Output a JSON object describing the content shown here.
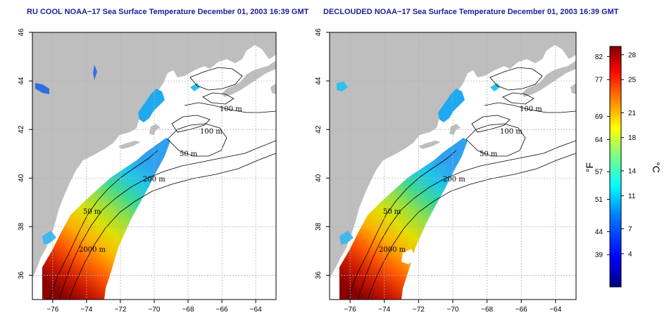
{
  "panels": [
    {
      "title": "RU COOL NOAA−17 Sea Surface Temperature December 01, 2003 16:39 GMT"
    },
    {
      "title": "DECLOUDED NOAA−17 Sea Surface Temperature December 01, 2003 16:39 GMT"
    }
  ],
  "axes": {
    "lon_ticks": [
      "−76",
      "−74",
      "−72",
      "−70",
      "−68",
      "−66",
      "−64"
    ],
    "lon_values": [
      -76,
      -74,
      -72,
      -70,
      -68,
      -66,
      -64
    ],
    "lat_ticks": [
      "36",
      "38",
      "40",
      "42",
      "44",
      "46"
    ],
    "lat_values": [
      36,
      38,
      40,
      42,
      44,
      46
    ],
    "lon_range": [
      -77.2,
      -62.8
    ],
    "lat_range": [
      35.0,
      46.0
    ]
  },
  "contour_labels": [
    "100 m",
    "100 m",
    "50 m",
    "200 m",
    "50 m",
    "2000 m"
  ],
  "colorbar": {
    "fahrenheit_ticks": [
      "82",
      "77",
      "69",
      "64",
      "57",
      "51",
      "44",
      "39"
    ],
    "fahrenheit_values": [
      82,
      77,
      69,
      64,
      57,
      51,
      44,
      39
    ],
    "celsius_ticks": [
      "28",
      "25",
      "21",
      "18",
      "14",
      "11",
      "7",
      "4"
    ],
    "celsius_values": [
      28,
      25,
      21,
      18,
      14,
      11,
      7,
      4
    ],
    "range_c": [
      0,
      29
    ],
    "left_unit": "°F",
    "right_unit": "°C",
    "colors": [
      "#00007f",
      "#0000ff",
      "#0080ff",
      "#00ffff",
      "#80ff80",
      "#ffff00",
      "#ff8000",
      "#ff0000",
      "#800000"
    ]
  },
  "colors": {
    "land": "#bebebe",
    "ocean": "#ffffff",
    "title": "#1c1c9c",
    "contour": "#000000"
  }
}
